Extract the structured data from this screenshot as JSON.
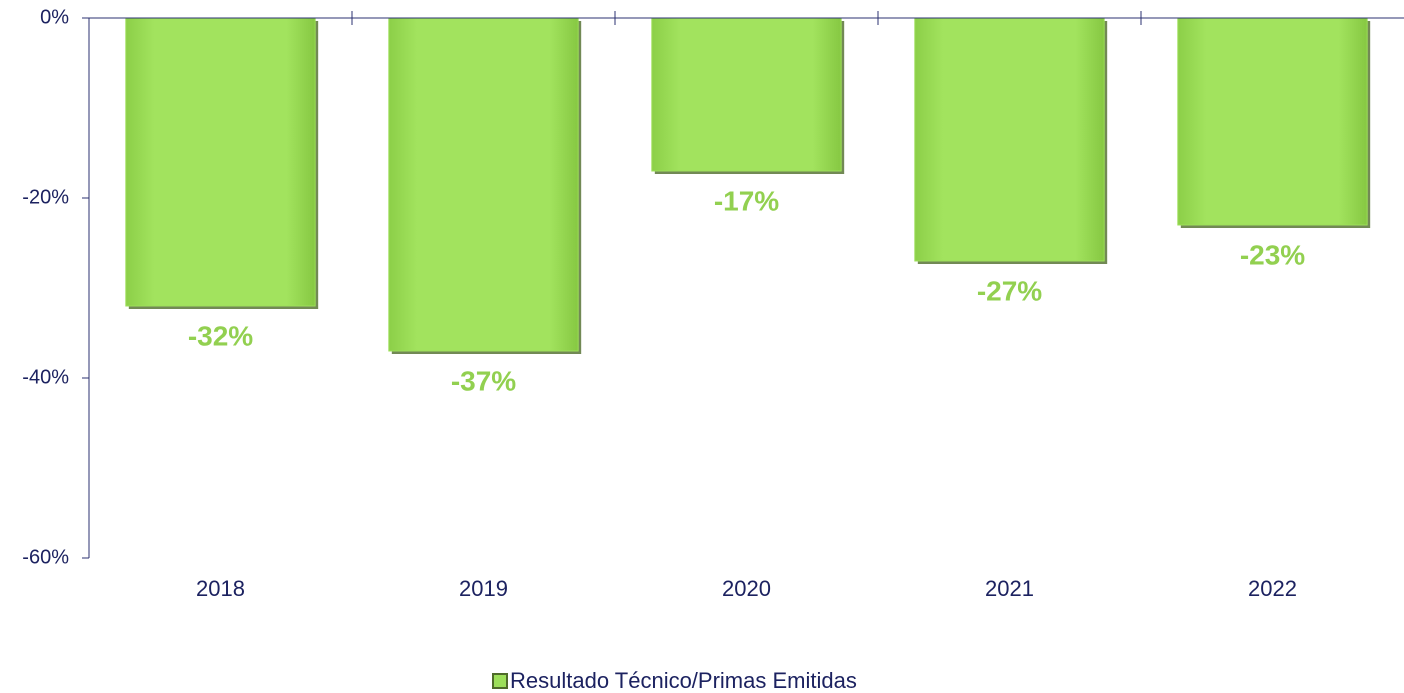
{
  "chart_data": {
    "type": "bar",
    "categories": [
      "2018",
      "2019",
      "2020",
      "2021",
      "2022"
    ],
    "series": [
      {
        "name": "Resultado Técnico/Primas Emitidas",
        "color": "#9ddf5a",
        "values": [
          -32,
          -37,
          -17,
          -27,
          -23
        ],
        "value_labels": [
          "-32%",
          "-37%",
          "-17%",
          "-27%",
          "-23%"
        ]
      }
    ],
    "ylim": [
      -60,
      0
    ],
    "yticks": [
      {
        "value": 0,
        "label": "0%"
      },
      {
        "value": -20,
        "label": "-20%"
      },
      {
        "value": -40,
        "label": "-40%"
      },
      {
        "value": -60,
        "label": "-60%"
      }
    ],
    "grid": false,
    "legend": "bottom"
  }
}
